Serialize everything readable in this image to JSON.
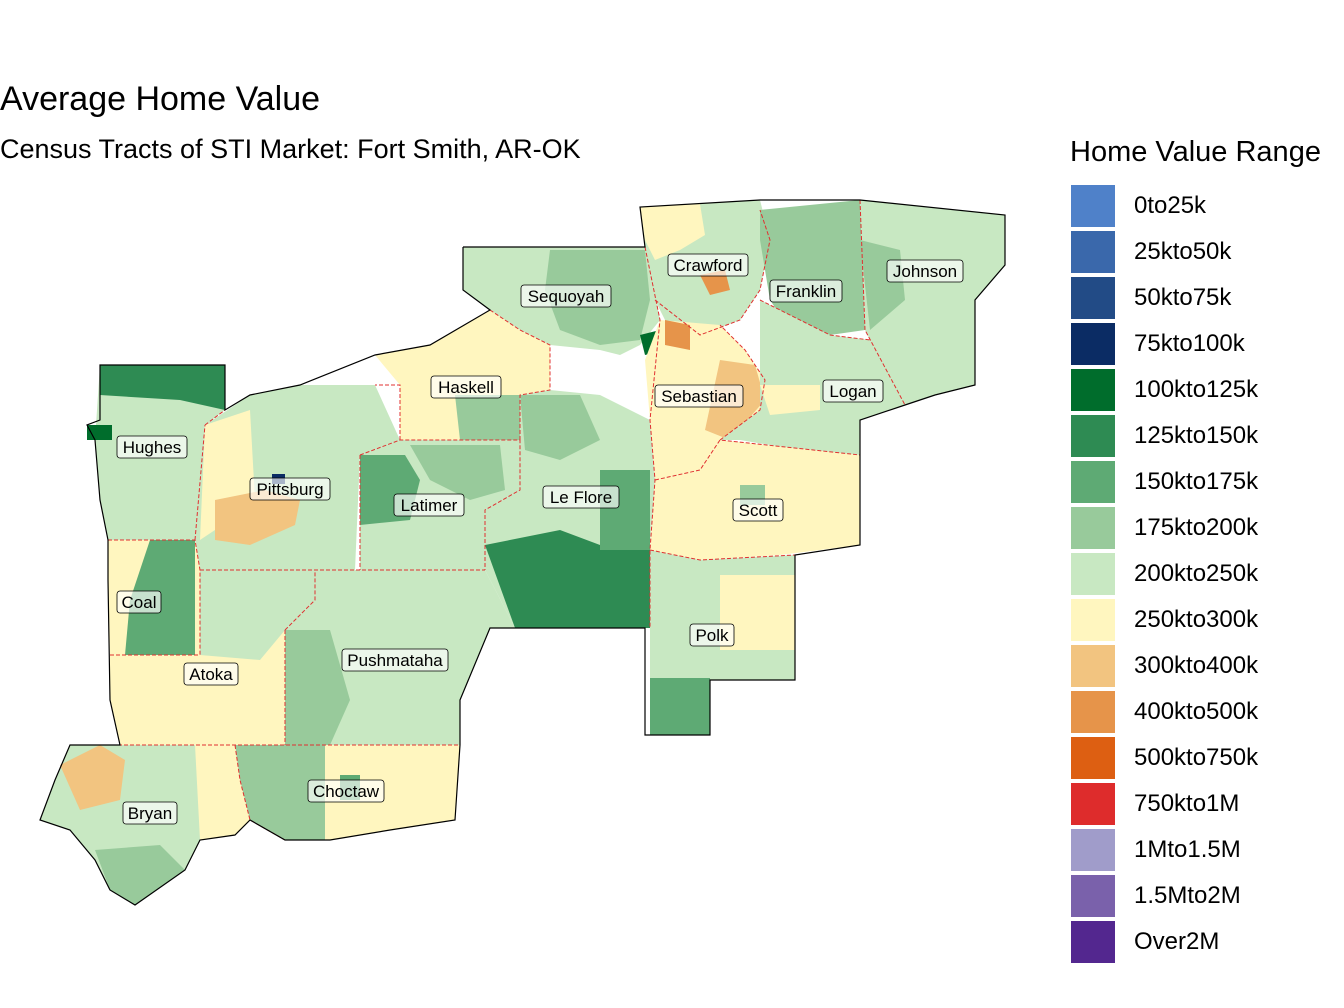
{
  "title": "Average Home Value",
  "subtitle": "Census Tracts of STI Market: Fort Smith, AR-OK",
  "legend": {
    "title": "Home Value Range",
    "items": [
      {
        "label": "0to25k",
        "color": "#4f81c9"
      },
      {
        "label": "25kto50k",
        "color": "#3a68ab"
      },
      {
        "label": "50kto75k",
        "color": "#224b86"
      },
      {
        "label": "75kto100k",
        "color": "#0b2c64"
      },
      {
        "label": "100kto125k",
        "color": "#006d2c"
      },
      {
        "label": "125kto150k",
        "color": "#2e8b53"
      },
      {
        "label": "150kto175k",
        "color": "#5eaa74"
      },
      {
        "label": "175kto200k",
        "color": "#98ca9b"
      },
      {
        "label": "200kto250k",
        "color": "#c8e8c2"
      },
      {
        "label": "250kto300k",
        "color": "#fff6bf"
      },
      {
        "label": "300kto400k",
        "color": "#f2c480"
      },
      {
        "label": "400kto500k",
        "color": "#e6944a"
      },
      {
        "label": "500kto750k",
        "color": "#dd5f12"
      },
      {
        "label": "750kto1M",
        "color": "#de2c2c"
      },
      {
        "label": "1Mto1.5M",
        "color": "#a09cca"
      },
      {
        "label": "1.5Mto2M",
        "color": "#7a61ab"
      },
      {
        "label": "Over2M",
        "color": "#53278f"
      }
    ]
  },
  "counties": [
    {
      "name": "Crawford",
      "range": "200kto250k"
    },
    {
      "name": "Franklin",
      "range": "175kto200k"
    },
    {
      "name": "Johnson",
      "range": "200kto250k"
    },
    {
      "name": "Sequoyah",
      "range": "200kto250k"
    },
    {
      "name": "Haskell",
      "range": "250kto300k"
    },
    {
      "name": "Sebastian",
      "range": "250kto300k"
    },
    {
      "name": "Logan",
      "range": "200kto250k"
    },
    {
      "name": "Hughes",
      "range": "200kto250k"
    },
    {
      "name": "Pittsburg",
      "range": "200kto250k"
    },
    {
      "name": "Latimer",
      "range": "200kto250k"
    },
    {
      "name": "Le Flore",
      "range": "200kto250k"
    },
    {
      "name": "Scott",
      "range": "250kto300k"
    },
    {
      "name": "Coal",
      "range": "250kto300k"
    },
    {
      "name": "Polk",
      "range": "200kto250k"
    },
    {
      "name": "Atoka",
      "range": "250kto300k"
    },
    {
      "name": "Pushmataha",
      "range": "200kto250k"
    },
    {
      "name": "Choctaw",
      "range": "250kto300k"
    },
    {
      "name": "Bryan",
      "range": "200kto250k"
    }
  ]
}
